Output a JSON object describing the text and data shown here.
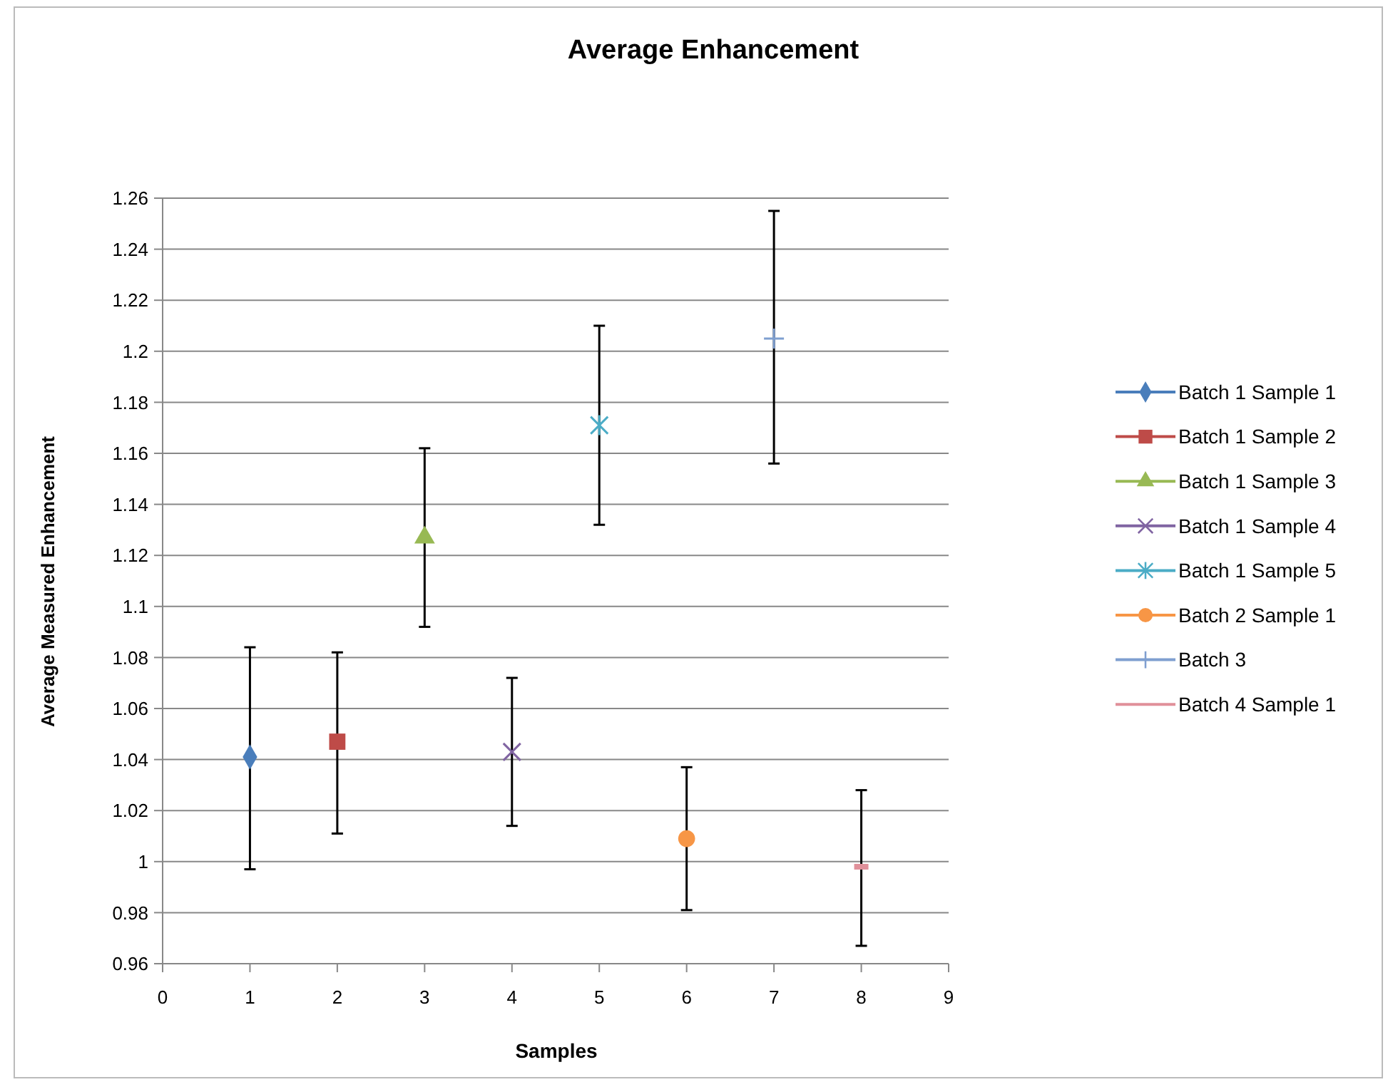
{
  "chart_data": {
    "type": "scatter",
    "title": "Average Enhancement",
    "xlabel": "Samples",
    "ylabel": "Average Measured Enhancement",
    "xlim": [
      0,
      9
    ],
    "xticks": [
      0,
      1,
      2,
      3,
      4,
      5,
      6,
      7,
      8,
      9
    ],
    "ylim": [
      0.96,
      1.26
    ],
    "yticks": [
      0.96,
      0.98,
      1,
      1.02,
      1.04,
      1.06,
      1.08,
      1.1,
      1.12,
      1.14,
      1.16,
      1.18,
      1.2,
      1.22,
      1.24,
      1.26
    ],
    "grid": "y",
    "legend": "right",
    "series": [
      {
        "name": "Batch 1 Sample 1",
        "color": "#4a7ebb",
        "marker": "diamond",
        "x": [
          1
        ],
        "values": [
          1.041
        ],
        "errors": [
          [
            0.997,
            1.084
          ]
        ]
      },
      {
        "name": "Batch 1 Sample 2",
        "color": "#be4b48",
        "marker": "square",
        "x": [
          2
        ],
        "values": [
          1.047
        ],
        "errors": [
          [
            1.011,
            1.082
          ]
        ]
      },
      {
        "name": "Batch 1 Sample 3",
        "color": "#98b954",
        "marker": "triangle",
        "x": [
          3
        ],
        "values": [
          1.127
        ],
        "errors": [
          [
            1.092,
            1.162
          ]
        ]
      },
      {
        "name": "Batch 1 Sample 4",
        "color": "#8064a2",
        "marker": "cross",
        "x": [
          4
        ],
        "values": [
          1.043
        ],
        "errors": [
          [
            1.014,
            1.072
          ]
        ]
      },
      {
        "name": "Batch 1 Sample 5",
        "color": "#4bacc6",
        "marker": "cross",
        "x": [
          5
        ],
        "values": [
          1.171
        ],
        "errors": [
          [
            1.132,
            1.21
          ]
        ]
      },
      {
        "name": "Batch 2 Sample 1",
        "color": "#f79646",
        "marker": "circle",
        "x": [
          6
        ],
        "values": [
          1.009
        ],
        "errors": [
          [
            0.981,
            1.037
          ]
        ]
      },
      {
        "name": "Batch 3",
        "color": "#7f9fd0",
        "marker": "plus",
        "x": [
          7
        ],
        "values": [
          1.205
        ],
        "errors": [
          [
            1.156,
            1.255
          ]
        ]
      },
      {
        "name": "Batch 4 Sample 1",
        "color": "#e0909a",
        "x": [
          8
        ],
        "values": [
          0.998
        ],
        "errors": [
          [
            0.967,
            1.028
          ]
        ]
      }
    ]
  }
}
